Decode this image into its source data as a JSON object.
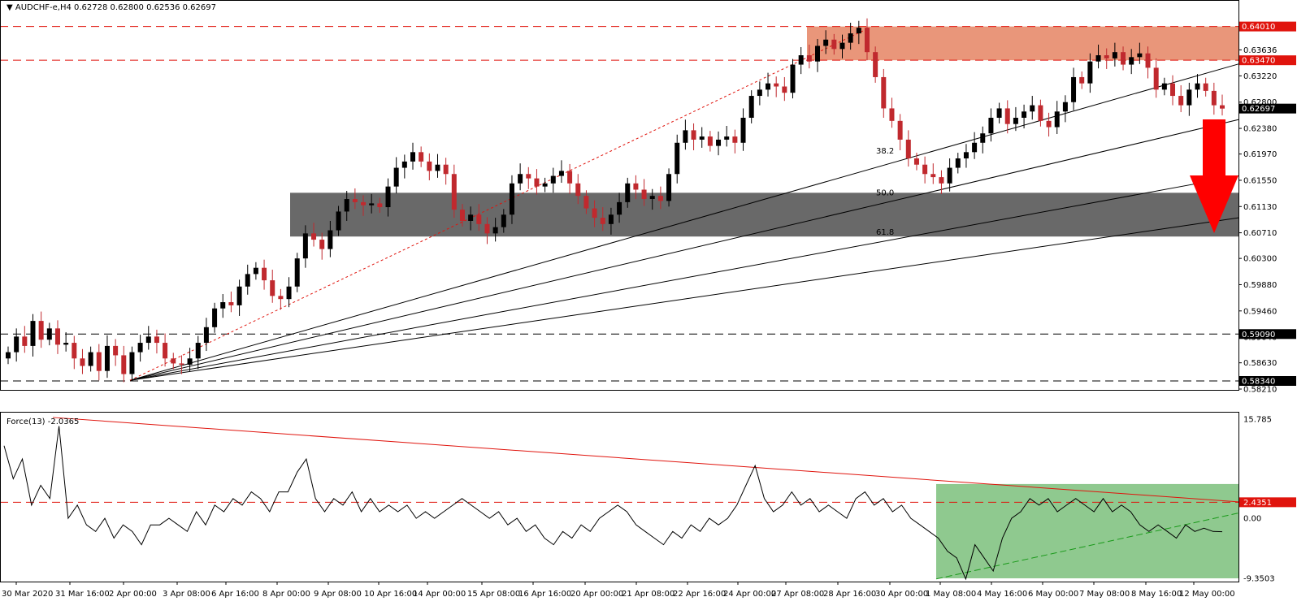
{
  "header": {
    "symbol": "AUDCHF-e,H4",
    "ohlc": "0.62728 0.62800 0.62536 0.62697",
    "indicator": "Force(13) -2.0365"
  },
  "colors": {
    "bull_candle": "#000000",
    "bear_candle": "#c0292e",
    "resistance_zone": "#e9967a",
    "support_zone": "#696969",
    "force_zone": "#8fc98f",
    "red_level": "#e0140d",
    "arrow": "#ff0000",
    "trend_green": "#1a9a1a"
  },
  "chart_data": [
    {
      "type": "candlestick",
      "ylim": [
        0.5821,
        0.642
      ],
      "price_axis_ticks": [
        "0.63636",
        "0.63220",
        "0.62800",
        "0.62380",
        "0.61970",
        "0.61550",
        "0.61130",
        "0.60710",
        "0.60300",
        "0.59880",
        "0.59460",
        "0.59040",
        "0.58630",
        "0.58210"
      ],
      "levels": [
        {
          "value": 0.6401,
          "label": "0.64010",
          "style": "red-dash"
        },
        {
          "value": 0.6347,
          "label": "0.63470",
          "style": "red-dash"
        },
        {
          "value": 0.62697,
          "label": "0.62697",
          "style": "current"
        },
        {
          "value": 0.5909,
          "label": "0.59090",
          "style": "black-dash"
        },
        {
          "value": 0.5834,
          "label": "0.58340",
          "style": "black-dash"
        }
      ],
      "zones": [
        {
          "name": "resistance",
          "from": 0.6347,
          "to": 0.6401,
          "start": "28 Apr 16:00"
        },
        {
          "name": "support",
          "from": 0.6065,
          "to": 0.6135,
          "start": "8 Apr 16:00"
        }
      ],
      "fib_fan_labels": [
        "38.2",
        "50.0",
        "61.8"
      ],
      "x_axis_labels": [
        "30 Mar 2020",
        "31 Mar 16:00",
        "2 Apr 00:00",
        "3 Apr 08:00",
        "6 Apr 16:00",
        "8 Apr 00:00",
        "9 Apr 08:00",
        "10 Apr 16:00",
        "14 Apr 00:00",
        "15 Apr 08:00",
        "16 Apr 16:00",
        "20 Apr 00:00",
        "21 Apr 08:00",
        "22 Apr 16:00",
        "24 Apr 00:00",
        "27 Apr 08:00",
        "28 Apr 16:00",
        "30 Apr 00:00",
        "1 May 08:00",
        "4 May 16:00",
        "6 May 00:00",
        "7 May 08:00",
        "8 May 16:00",
        "12 May 00:00"
      ],
      "closes": [
        0.588,
        0.5905,
        0.589,
        0.593,
        0.59,
        0.5918,
        0.5892,
        0.5895,
        0.587,
        0.5858,
        0.588,
        0.585,
        0.589,
        0.5875,
        0.5845,
        0.588,
        0.5895,
        0.5905,
        0.5895,
        0.587,
        0.5862,
        0.586,
        0.587,
        0.5895,
        0.592,
        0.595,
        0.596,
        0.5955,
        0.5985,
        0.6005,
        0.6015,
        0.5995,
        0.597,
        0.5965,
        0.5985,
        0.603,
        0.607,
        0.606,
        0.6045,
        0.6075,
        0.6105,
        0.6125,
        0.612,
        0.6115,
        0.6118,
        0.6112,
        0.6145,
        0.6175,
        0.6185,
        0.62,
        0.6185,
        0.617,
        0.618,
        0.6165,
        0.6108,
        0.609,
        0.61,
        0.6085,
        0.607,
        0.608,
        0.61,
        0.615,
        0.6165,
        0.6158,
        0.6145,
        0.615,
        0.6162,
        0.617,
        0.615,
        0.613,
        0.611,
        0.6095,
        0.6085,
        0.61,
        0.612,
        0.615,
        0.614,
        0.6125,
        0.613,
        0.6122,
        0.6165,
        0.6215,
        0.6235,
        0.622,
        0.6225,
        0.621,
        0.622,
        0.6225,
        0.6215,
        0.6255,
        0.629,
        0.63,
        0.631,
        0.6305,
        0.6295,
        0.634,
        0.6355,
        0.6345,
        0.637,
        0.638,
        0.6365,
        0.6375,
        0.639,
        0.6399,
        0.636,
        0.632,
        0.627,
        0.625,
        0.622,
        0.619,
        0.618,
        0.6165,
        0.616,
        0.615,
        0.6175,
        0.619,
        0.62,
        0.6215,
        0.623,
        0.6255,
        0.627,
        0.6245,
        0.6255,
        0.6265,
        0.6275,
        0.625,
        0.624,
        0.6265,
        0.628,
        0.632,
        0.631,
        0.6345,
        0.6355,
        0.635,
        0.636,
        0.634,
        0.6352,
        0.6358,
        0.6335,
        0.63,
        0.631,
        0.629,
        0.6275,
        0.63,
        0.631,
        0.6298,
        0.6275,
        0.62697
      ],
      "force": {
        "ylim": [
          -9.3503,
          15.785
        ],
        "axis_labels": [
          "15.785",
          "2.4351",
          "0.00",
          "-9.3503"
        ],
        "level": {
          "value": 2.4351,
          "label": "2.4351"
        },
        "values": [
          11,
          6,
          9,
          2,
          5,
          3,
          14,
          0,
          2,
          -1,
          -2,
          0,
          -3,
          -1,
          -2,
          -4,
          -1,
          -1,
          0,
          -1,
          -2,
          1,
          -1,
          2,
          1,
          3,
          2,
          4,
          3,
          1,
          4,
          4,
          7,
          9,
          3,
          1,
          3,
          2,
          4,
          1,
          3,
          1,
          2,
          1,
          2,
          0,
          1,
          0,
          1,
          2,
          3,
          2,
          1,
          0,
          1,
          -1,
          0,
          -2,
          -1,
          -3,
          -4,
          -2,
          -3,
          -1,
          -2,
          0,
          1,
          2,
          1,
          -1,
          -2,
          -3,
          -4,
          -2,
          -3,
          -1,
          -2,
          0,
          -1,
          0,
          2,
          5,
          8,
          3,
          1,
          2,
          4,
          2,
          3,
          1,
          2,
          1,
          0,
          3,
          4,
          2,
          3,
          1,
          2,
          0,
          -1,
          -2,
          -3,
          -5,
          -6,
          -9.2,
          -4,
          -6,
          -8,
          -3,
          0,
          1,
          3,
          2,
          3,
          1,
          2,
          3,
          2,
          1,
          3,
          1,
          2,
          1,
          -1,
          -2,
          -1,
          -2,
          -3,
          -1,
          -2,
          -1.5,
          -2,
          -2.0365
        ]
      }
    }
  ]
}
